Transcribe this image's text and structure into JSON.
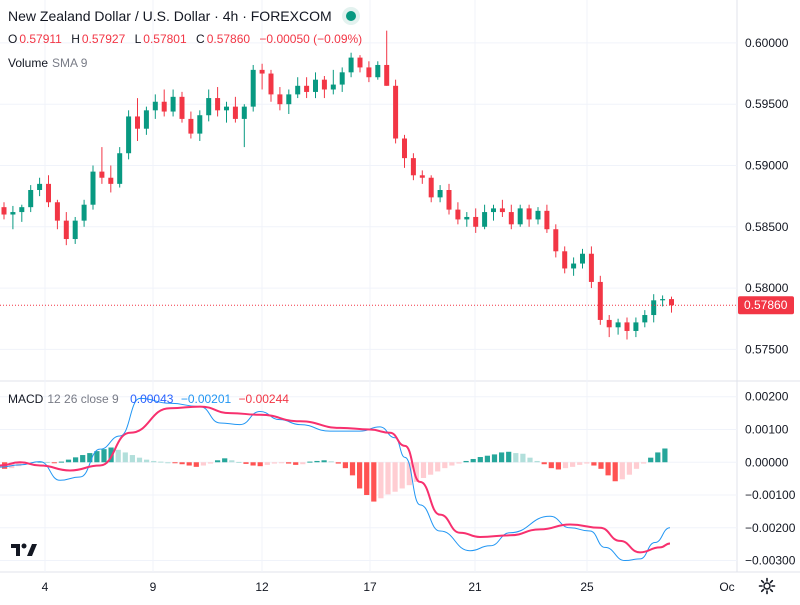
{
  "header": {
    "title": "New Zealand Dollar / U.S. Dollar · 4h · FOREXCOM",
    "ohlc": [
      {
        "key": "O",
        "value": "0.57911"
      },
      {
        "key": "H",
        "value": "0.57927"
      },
      {
        "key": "L",
        "value": "0.57801"
      },
      {
        "key": "C",
        "value": "0.57860"
      }
    ],
    "change": "−0.00050 (−0.09%)"
  },
  "volume": {
    "label": "Volume",
    "ma": "SMA 9"
  },
  "macd": {
    "label": "MACD",
    "params": "12 26 close 9",
    "values": [
      "0.00043",
      "−0.00201",
      "−0.00244"
    ]
  },
  "price_axis": {
    "ticks": [
      "0.60000",
      "0.59500",
      "0.59000",
      "0.58500",
      "0.58000",
      "0.57500"
    ],
    "last_price": "0.57860"
  },
  "macd_axis": {
    "ticks": [
      "0.00200",
      "0.00100",
      "0.00000",
      "−0.00100",
      "−0.00200",
      "−0.00300"
    ]
  },
  "time_axis": {
    "ticks": [
      "4",
      "9",
      "12",
      "17",
      "21",
      "25",
      "Oc"
    ]
  },
  "colors": {
    "up": "#089981",
    "down": "#f23645",
    "macd": "#2196f3",
    "signal": "#f7306e",
    "hist_up_strong": "#26a69a",
    "hist_up_weak": "#b2dfdb",
    "hist_down_strong": "#ff5252",
    "hist_down_weak": "#ffcdd2"
  },
  "icons": {
    "logo": "tradingview-logo-icon",
    "settings": "gear-icon"
  },
  "chart_data": {
    "type": "candlestick",
    "price_range": [
      0.5725,
      0.6035
    ],
    "candles": [
      [
        0.5866,
        0.587,
        0.5856,
        0.586
      ],
      [
        0.586,
        0.5867,
        0.5848,
        0.5862
      ],
      [
        0.5862,
        0.5868,
        0.5854,
        0.5866
      ],
      [
        0.5866,
        0.5884,
        0.5862,
        0.588
      ],
      [
        0.588,
        0.589,
        0.5875,
        0.5885
      ],
      [
        0.5885,
        0.5892,
        0.5866,
        0.587
      ],
      [
        0.587,
        0.5872,
        0.5848,
        0.5855
      ],
      [
        0.5855,
        0.5862,
        0.5835,
        0.584
      ],
      [
        0.584,
        0.5858,
        0.5836,
        0.5855
      ],
      [
        0.5855,
        0.5872,
        0.585,
        0.5868
      ],
      [
        0.5868,
        0.59,
        0.5864,
        0.5895
      ],
      [
        0.5895,
        0.5915,
        0.5885,
        0.589
      ],
      [
        0.589,
        0.59,
        0.5878,
        0.5885
      ],
      [
        0.5885,
        0.5915,
        0.5882,
        0.591
      ],
      [
        0.591,
        0.5945,
        0.5905,
        0.594
      ],
      [
        0.594,
        0.5955,
        0.592,
        0.593
      ],
      [
        0.593,
        0.5948,
        0.5925,
        0.5945
      ],
      [
        0.5945,
        0.5958,
        0.5938,
        0.5952
      ],
      [
        0.5952,
        0.5962,
        0.594,
        0.5944
      ],
      [
        0.5944,
        0.5962,
        0.594,
        0.5956
      ],
      [
        0.5956,
        0.596,
        0.5935,
        0.5938
      ],
      [
        0.5938,
        0.5944,
        0.5922,
        0.5926
      ],
      [
        0.5926,
        0.5945,
        0.592,
        0.5941
      ],
      [
        0.5941,
        0.5962,
        0.5936,
        0.5955
      ],
      [
        0.5955,
        0.5964,
        0.594,
        0.5945
      ],
      [
        0.5945,
        0.5952,
        0.5935,
        0.5948
      ],
      [
        0.5948,
        0.5956,
        0.5935,
        0.5938
      ],
      [
        0.5938,
        0.595,
        0.5915,
        0.5948
      ],
      [
        0.5948,
        0.5982,
        0.5944,
        0.5978
      ],
      [
        0.5978,
        0.5983,
        0.5962,
        0.5975
      ],
      [
        0.5975,
        0.5978,
        0.5952,
        0.5958
      ],
      [
        0.5958,
        0.5964,
        0.5945,
        0.595
      ],
      [
        0.595,
        0.5962,
        0.5942,
        0.5958
      ],
      [
        0.5958,
        0.5972,
        0.5955,
        0.5965
      ],
      [
        0.5965,
        0.5972,
        0.5955,
        0.596
      ],
      [
        0.596,
        0.5976,
        0.5955,
        0.597
      ],
      [
        0.597,
        0.5973,
        0.5955,
        0.5962
      ],
      [
        0.5962,
        0.5978,
        0.5958,
        0.5966
      ],
      [
        0.5966,
        0.598,
        0.596,
        0.5976
      ],
      [
        0.5976,
        0.5992,
        0.5972,
        0.5988
      ],
      [
        0.5988,
        0.599,
        0.5976,
        0.598
      ],
      [
        0.598,
        0.5985,
        0.5968,
        0.5972
      ],
      [
        0.5972,
        0.5985,
        0.597,
        0.5982
      ],
      [
        0.5982,
        0.601,
        0.5965,
        0.5965
      ],
      [
        0.5965,
        0.597,
        0.5918,
        0.5922
      ],
      [
        0.5922,
        0.5925,
        0.5898,
        0.5906
      ],
      [
        0.5906,
        0.591,
        0.5888,
        0.5892
      ],
      [
        0.5892,
        0.5896,
        0.5885,
        0.589
      ],
      [
        0.589,
        0.5892,
        0.587,
        0.5874
      ],
      [
        0.5874,
        0.5884,
        0.587,
        0.588
      ],
      [
        0.588,
        0.5885,
        0.586,
        0.5864
      ],
      [
        0.5864,
        0.587,
        0.5852,
        0.5856
      ],
      [
        0.5856,
        0.5862,
        0.585,
        0.5858
      ],
      [
        0.5858,
        0.5865,
        0.5845,
        0.585
      ],
      [
        0.585,
        0.5868,
        0.5848,
        0.5862
      ],
      [
        0.5862,
        0.5868,
        0.5855,
        0.5865
      ],
      [
        0.5865,
        0.5872,
        0.5858,
        0.5862
      ],
      [
        0.5862,
        0.5868,
        0.5848,
        0.5852
      ],
      [
        0.5852,
        0.5868,
        0.585,
        0.5865
      ],
      [
        0.5865,
        0.5868,
        0.585,
        0.5856
      ],
      [
        0.5856,
        0.5866,
        0.5852,
        0.5863
      ],
      [
        0.5863,
        0.5868,
        0.5845,
        0.5848
      ],
      [
        0.5848,
        0.5852,
        0.5825,
        0.583
      ],
      [
        0.583,
        0.5834,
        0.5812,
        0.5816
      ],
      [
        0.5816,
        0.5825,
        0.581,
        0.582
      ],
      [
        0.582,
        0.5832,
        0.5816,
        0.5828
      ],
      [
        0.5828,
        0.5834,
        0.58,
        0.5805
      ],
      [
        0.5805,
        0.581,
        0.577,
        0.5774
      ],
      [
        0.5774,
        0.5778,
        0.576,
        0.5768
      ],
      [
        0.5768,
        0.5775,
        0.5762,
        0.5772
      ],
      [
        0.5772,
        0.5776,
        0.5758,
        0.5765
      ],
      [
        0.5765,
        0.5776,
        0.576,
        0.5772
      ],
      [
        0.5772,
        0.5782,
        0.5768,
        0.5778
      ],
      [
        0.5778,
        0.5795,
        0.5772,
        0.579
      ],
      [
        0.579,
        0.5794,
        0.5785,
        0.5791
      ],
      [
        0.5791,
        0.5793,
        0.578,
        0.5786
      ]
    ],
    "macd_range": [
      -0.00335,
      0.00245
    ],
    "histogram": [
      -0.0002,
      -0.00018,
      -0.00012,
      -6e-05,
      -2e-05,
      2e-05,
      1e-05,
      -3e-05,
      2e-05,
      8e-05,
      0.00015,
      0.00022,
      0.00028,
      0.00034,
      0.0004,
      0.00045,
      0.00038,
      0.0003,
      0.00022,
      0.00014,
      8e-05,
      4e-05,
      2e-05,
      0.0,
      -3e-05,
      -6e-05,
      -0.0001,
      -0.00014,
      -0.0001,
      -4e-05,
      6e-05,
      0.00012,
      6e-05,
      1e-05,
      -5e-05,
      -0.0001,
      -0.00012,
      -8e-05,
      -4e-05,
      -2e-05,
      -4e-05,
      -8e-05,
      -6e-05,
      2e-05,
      4e-05,
      6e-05,
      3e-05,
      -4e-05,
      -0.00018,
      -0.0004,
      -0.0008,
      -0.001,
      -0.0012,
      -0.0011,
      -0.00098,
      -0.0009,
      -0.0008,
      -0.0007,
      -0.0006,
      -0.00048,
      -0.00038,
      -0.00028,
      -0.00018,
      -0.0001,
      -4e-05,
      4e-05,
      0.0001,
      0.00016,
      0.0002,
      0.00024,
      0.0003,
      0.00032,
      0.00028,
      0.00026,
      0.00014,
      4e-05,
      -6e-05,
      -0.00018,
      -0.00022,
      -0.00018,
      -0.00014,
      -8e-05,
      -4e-05,
      -0.0001,
      -0.0002,
      -0.0004,
      -0.00058,
      -0.00052,
      -0.00038,
      -0.0002,
      -4e-05,
      0.00014,
      0.0003,
      0.00042
    ],
    "macd_line": [
      [
        0,
        -0.00015
      ],
      [
        20,
        -8e-05
      ],
      [
        40,
        2e-05
      ],
      [
        60,
        -0.00055
      ],
      [
        80,
        -0.00045
      ],
      [
        100,
        0.0004
      ],
      [
        120,
        0.0008
      ],
      [
        140,
        0.00195
      ],
      [
        170,
        0.0018
      ],
      [
        200,
        0.0017
      ],
      [
        220,
        0.0012
      ],
      [
        240,
        0.00115
      ],
      [
        260,
        0.00155
      ],
      [
        280,
        0.0013
      ],
      [
        300,
        0.00115
      ],
      [
        330,
        0.00095
      ],
      [
        360,
        0.00095
      ],
      [
        380,
        0.00108
      ],
      [
        395,
        0.00075
      ],
      [
        405,
        0.00015
      ],
      [
        420,
        -0.0013
      ],
      [
        440,
        -0.0021
      ],
      [
        470,
        -0.0027
      ],
      [
        490,
        -0.00255
      ],
      [
        510,
        -0.00215
      ],
      [
        550,
        -0.00165
      ],
      [
        570,
        -0.002
      ],
      [
        590,
        -0.0021
      ],
      [
        605,
        -0.0026
      ],
      [
        625,
        -0.003
      ],
      [
        640,
        -0.00295
      ],
      [
        655,
        -0.00245
      ],
      [
        670,
        -0.002
      ]
    ],
    "signal_line": [
      [
        0,
        -0.0001
      ],
      [
        20,
        0.0
      ],
      [
        40,
        -0.0001
      ],
      [
        70,
        -0.00025
      ],
      [
        100,
        -0.0001
      ],
      [
        130,
        0.0009
      ],
      [
        170,
        0.00165
      ],
      [
        200,
        0.0017
      ],
      [
        230,
        0.0015
      ],
      [
        260,
        0.00145
      ],
      [
        300,
        0.00125
      ],
      [
        340,
        0.00105
      ],
      [
        370,
        0.001
      ],
      [
        390,
        0.0009
      ],
      [
        405,
        0.0005
      ],
      [
        420,
        -0.0006
      ],
      [
        440,
        -0.0016
      ],
      [
        460,
        -0.00215
      ],
      [
        480,
        -0.00228
      ],
      [
        510,
        -0.00223
      ],
      [
        540,
        -0.00205
      ],
      [
        570,
        -0.0019
      ],
      [
        600,
        -0.002
      ],
      [
        620,
        -0.0024
      ],
      [
        640,
        -0.00275
      ],
      [
        660,
        -0.0026
      ],
      [
        670,
        -0.00248
      ]
    ]
  }
}
